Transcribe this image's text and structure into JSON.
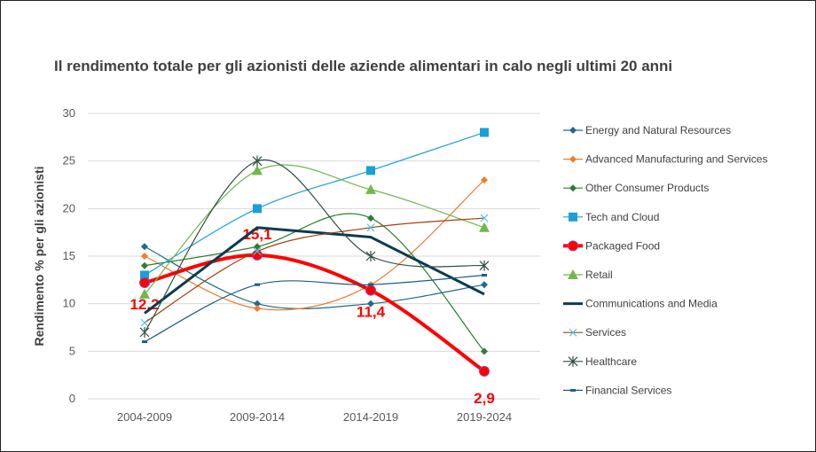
{
  "chart_data": {
    "type": "line",
    "title": "Il rendimento totale per gli azionisti delle aziende alimentari in calo negli ultimi 20 anni",
    "xlabel": "",
    "ylabel": "Rendimento % per gli azionisti",
    "ylim": [
      0,
      30
    ],
    "yticks": [
      0,
      5,
      10,
      15,
      20,
      25,
      30
    ],
    "grid": true,
    "legend_position": "right",
    "categories": [
      "2004-2009",
      "2009-2014",
      "2014-2019",
      "2019-2024"
    ],
    "series": [
      {
        "name": "Energy and Natural Resources",
        "values": [
          16,
          10,
          10,
          12
        ],
        "color": "#1f6a8a",
        "marker": "diamond",
        "smooth": true
      },
      {
        "name": "Advanced Manufacturing and Services",
        "values": [
          15,
          9.5,
          12,
          23
        ],
        "color": "#ed7d31",
        "marker": "diamond",
        "smooth": true
      },
      {
        "name": "Other Consumer Products",
        "values": [
          14,
          16,
          19,
          5
        ],
        "color": "#2e7d32",
        "marker": "diamond",
        "smooth": true
      },
      {
        "name": "Tech and Cloud",
        "values": [
          13,
          20,
          24,
          28
        ],
        "color": "#1a9fd9",
        "marker": "square",
        "smooth": true
      },
      {
        "name": "Packaged Food",
        "values": [
          12.2,
          15.1,
          11.4,
          2.9
        ],
        "color": "#ff0000",
        "marker": "circle",
        "smooth": true,
        "data_labels": [
          "12,2",
          "15,1",
          "11,4",
          "2,9"
        ]
      },
      {
        "name": "Retail",
        "values": [
          11,
          24,
          22,
          18
        ],
        "color": "#70b84a",
        "marker": "triangle",
        "smooth": true
      },
      {
        "name": "Communications and Media",
        "values": [
          9,
          18,
          17,
          11
        ],
        "color": "#0b3b4f",
        "marker": "none",
        "smooth": false
      },
      {
        "name": "Services",
        "values": [
          8,
          15.5,
          18,
          19
        ],
        "color": "#a0410d",
        "marker_color": "#4fc3e8",
        "marker": "x",
        "smooth": true
      },
      {
        "name": "Healthcare",
        "values": [
          7,
          25,
          15,
          14
        ],
        "color": "#2f4f3f",
        "marker": "star",
        "smooth": true
      },
      {
        "name": "Financial Services",
        "values": [
          6,
          12,
          12,
          13
        ],
        "color": "#1b5e82",
        "marker": "dash",
        "smooth": true
      }
    ]
  }
}
